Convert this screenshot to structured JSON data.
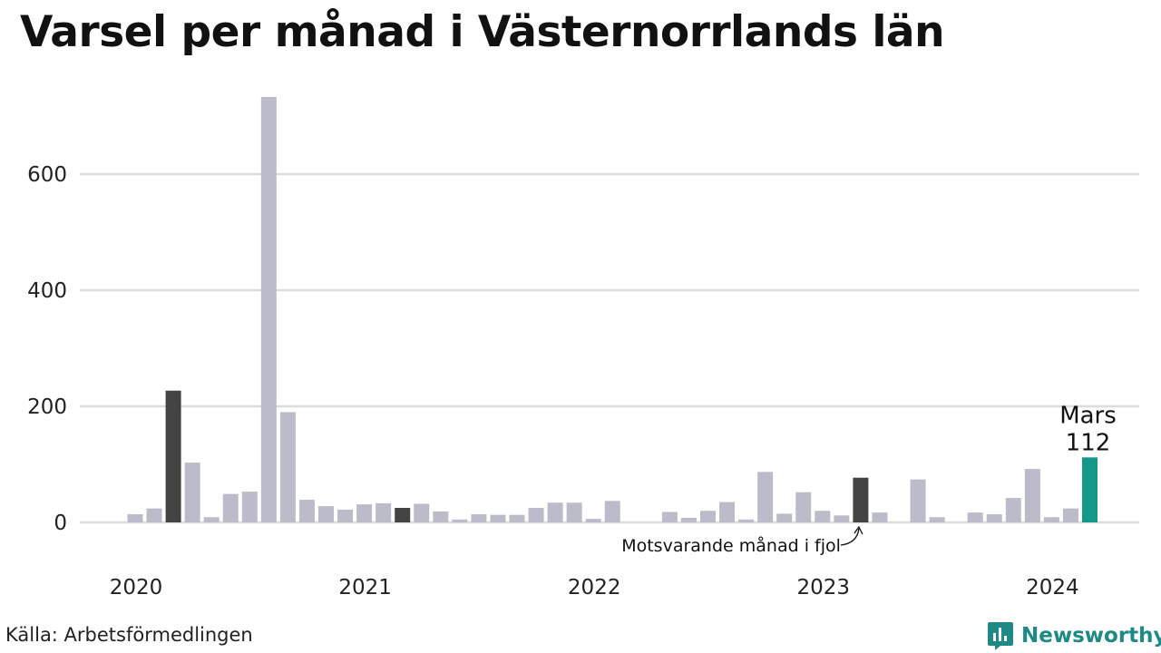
{
  "title": "Varsel per månad i Västernorrlands län",
  "source": "Källa: Arbetsförmedlingen",
  "brand": "Newsworthy",
  "colors": {
    "default_bar": "#bcbbc9",
    "march_bar": "#434343",
    "highlight_bar": "#13988a",
    "grid": "#dcdcdc",
    "brand": "#1d8a85"
  },
  "chart_data": {
    "type": "bar",
    "title": "Varsel per månad i Västernorrlands län",
    "xlabel": "",
    "ylabel": "",
    "ylim": [
      0,
      740
    ],
    "yticks": [
      0,
      200,
      400,
      600
    ],
    "grid": true,
    "xtick_labels": [
      "2020",
      "2021",
      "2022",
      "2023",
      "2024"
    ],
    "categories": [
      "2020-01",
      "2020-02",
      "2020-03",
      "2020-04",
      "2020-05",
      "2020-06",
      "2020-07",
      "2020-08",
      "2020-09",
      "2020-10",
      "2020-11",
      "2020-12",
      "2021-01",
      "2021-02",
      "2021-03",
      "2021-04",
      "2021-05",
      "2021-06",
      "2021-07",
      "2021-08",
      "2021-09",
      "2021-10",
      "2021-11",
      "2021-12",
      "2022-01",
      "2022-02",
      "2022-03",
      "2022-04",
      "2022-05",
      "2022-06",
      "2022-07",
      "2022-08",
      "2022-09",
      "2022-10",
      "2022-11",
      "2022-12",
      "2023-01",
      "2023-02",
      "2023-03",
      "2023-04",
      "2023-05",
      "2023-06",
      "2023-07",
      "2023-08",
      "2023-09",
      "2023-10",
      "2023-11",
      "2023-12",
      "2024-01",
      "2024-02",
      "2024-03"
    ],
    "values": [
      14,
      24,
      227,
      103,
      9,
      49,
      53,
      733,
      190,
      39,
      28,
      22,
      31,
      33,
      25,
      32,
      19,
      5,
      14,
      13,
      13,
      25,
      34,
      34,
      6,
      37,
      0,
      0,
      18,
      8,
      20,
      35,
      5,
      87,
      15,
      52,
      20,
      12,
      77,
      17,
      0,
      74,
      9,
      0,
      17,
      14,
      42,
      92,
      9,
      24,
      112
    ],
    "march_months": [
      "2020-03",
      "2021-03",
      "2022-03",
      "2023-03"
    ],
    "highlight_month": "2024-03",
    "annotations": {
      "current_label": "Mars",
      "current_value": "112",
      "last_year_label": "Motsvarande månad i fjol"
    }
  }
}
